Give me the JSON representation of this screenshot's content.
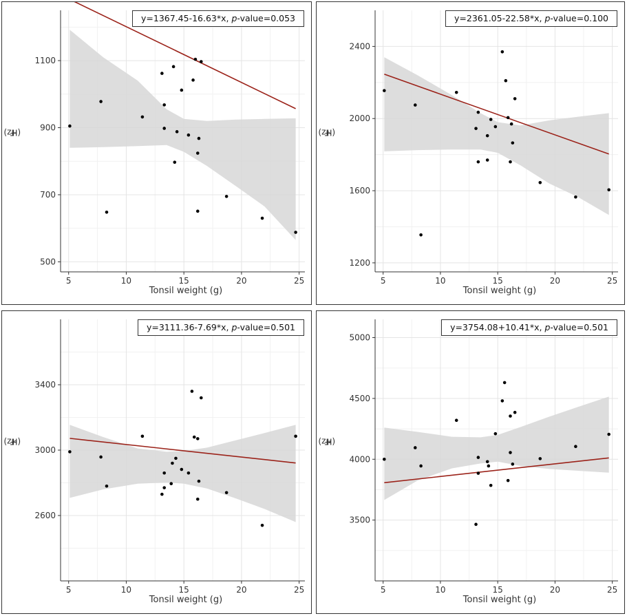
{
  "chart_data": [
    {
      "type": "scatter",
      "equation_prefix": "y=1367.45-16.63*x, ",
      "pvalue_label": "p",
      "pvalue_text": "-value=0.053",
      "xlabel": "Tonsil weight (g)",
      "ylabel_base": "F",
      "ylabel_sub": "1",
      "ylabel_unit": " (Hz)",
      "xlim": [
        4.3,
        25.5
      ],
      "ylim": [
        470,
        1250
      ],
      "xticks": [
        5,
        10,
        15,
        20,
        25
      ],
      "yticks": [
        500,
        700,
        900,
        1100
      ],
      "fit": {
        "intercept": 1367.45,
        "slope": -16.63
      },
      "band": [
        [
          5.1,
          1192,
          840
        ],
        [
          8,
          1110,
          842
        ],
        [
          11,
          1040,
          845
        ],
        [
          13.5,
          955,
          848
        ],
        [
          15,
          926,
          828
        ],
        [
          17,
          920,
          786
        ],
        [
          19.5,
          924,
          726
        ],
        [
          22,
          926,
          665
        ],
        [
          24.7,
          928,
          565
        ]
      ],
      "points": [
        [
          5.1,
          905
        ],
        [
          7.8,
          978
        ],
        [
          8.3,
          648
        ],
        [
          11.4,
          932
        ],
        [
          13.1,
          1062
        ],
        [
          13.3,
          968
        ],
        [
          13.3,
          898
        ],
        [
          14.1,
          1082
        ],
        [
          14.2,
          797
        ],
        [
          14.4,
          888
        ],
        [
          14.8,
          1012
        ],
        [
          15.4,
          878
        ],
        [
          15.8,
          1042
        ],
        [
          16.0,
          1104
        ],
        [
          16.2,
          824
        ],
        [
          16.2,
          651
        ],
        [
          16.3,
          868
        ],
        [
          16.5,
          1097
        ],
        [
          18.7,
          695
        ],
        [
          21.8,
          630
        ],
        [
          24.7,
          588
        ]
      ],
      "colors": {
        "fit": "#9b2219",
        "band": "#d7d7d7",
        "point": "#000000"
      }
    },
    {
      "type": "scatter",
      "equation_prefix": "y=2361.05-22.58*x, ",
      "pvalue_label": "p",
      "pvalue_text": "-value=0.100",
      "xlabel": "Tonsil weight (g)",
      "ylabel_base": "F",
      "ylabel_sub": "2",
      "ylabel_unit": " (Hz)",
      "xlim": [
        4.3,
        25.5
      ],
      "ylim": [
        1150,
        2600
      ],
      "xticks": [
        5,
        10,
        15,
        20,
        25
      ],
      "yticks": [
        1200,
        1600,
        2000,
        2400
      ],
      "fit": {
        "intercept": 2361.05,
        "slope": -22.58
      },
      "band": [
        [
          5.1,
          2340,
          1818
        ],
        [
          8,
          2240,
          1825
        ],
        [
          11,
          2130,
          1828
        ],
        [
          13.5,
          2030,
          1828
        ],
        [
          15,
          1980,
          1810
        ],
        [
          17,
          1962,
          1740
        ],
        [
          19.5,
          1990,
          1640
        ],
        [
          22,
          2010,
          1565
        ],
        [
          24.7,
          2030,
          1465
        ]
      ],
      "points": [
        [
          5.1,
          2155
        ],
        [
          7.8,
          2075
        ],
        [
          8.3,
          1355
        ],
        [
          11.4,
          2145
        ],
        [
          13.1,
          1945
        ],
        [
          13.3,
          2035
        ],
        [
          13.3,
          1760
        ],
        [
          14.1,
          1770
        ],
        [
          14.1,
          1905
        ],
        [
          14.4,
          1995
        ],
        [
          14.8,
          1955
        ],
        [
          15.4,
          2370
        ],
        [
          15.7,
          2210
        ],
        [
          15.9,
          2005
        ],
        [
          16.1,
          1760
        ],
        [
          16.2,
          1970
        ],
        [
          16.3,
          1865
        ],
        [
          16.5,
          2110
        ],
        [
          18.7,
          1645
        ],
        [
          21.8,
          1565
        ],
        [
          24.7,
          1605
        ]
      ],
      "colors": {
        "fit": "#9b2219",
        "band": "#d7d7d7",
        "point": "#000000"
      }
    },
    {
      "type": "scatter",
      "equation_prefix": "y=3111.36-7.69*x, ",
      "pvalue_label": "p",
      "pvalue_text": "-value=0.501",
      "xlabel": "Tonsil weight (g)",
      "ylabel_base": "F",
      "ylabel_sub": "3",
      "ylabel_unit": " (Hz)",
      "xlim": [
        4.3,
        25.5
      ],
      "ylim": [
        2200,
        3800
      ],
      "xticks": [
        5,
        10,
        15,
        20,
        25
      ],
      "yticks": [
        2600,
        3000,
        3400
      ],
      "fit": {
        "intercept": 3111.36,
        "slope": -7.69
      },
      "band": [
        [
          5.1,
          3155,
          2708
        ],
        [
          8,
          3080,
          2760
        ],
        [
          11,
          3010,
          2795
        ],
        [
          13.5,
          2990,
          2802
        ],
        [
          15,
          2995,
          2795
        ],
        [
          17,
          3015,
          2765
        ],
        [
          19.5,
          3060,
          2705
        ],
        [
          22,
          3105,
          2640
        ],
        [
          24.7,
          3155,
          2560
        ]
      ],
      "points": [
        [
          5.1,
          2990
        ],
        [
          7.8,
          2958
        ],
        [
          8.3,
          2780
        ],
        [
          11.4,
          3085
        ],
        [
          13.1,
          2730
        ],
        [
          13.3,
          2770
        ],
        [
          13.3,
          2860
        ],
        [
          13.9,
          2795
        ],
        [
          14.0,
          2920
        ],
        [
          14.3,
          2950
        ],
        [
          14.8,
          2882
        ],
        [
          15.4,
          2860
        ],
        [
          15.7,
          3360
        ],
        [
          15.9,
          3080
        ],
        [
          16.2,
          2700
        ],
        [
          16.2,
          3070
        ],
        [
          16.3,
          2810
        ],
        [
          16.5,
          3320
        ],
        [
          18.7,
          2740
        ],
        [
          21.8,
          2540
        ],
        [
          24.7,
          3085
        ]
      ],
      "colors": {
        "fit": "#9b2219",
        "band": "#d7d7d7",
        "point": "#000000"
      }
    },
    {
      "type": "scatter",
      "equation_prefix": "y=3754.08+10.41*x, ",
      "pvalue_label": "p",
      "pvalue_text": "-value=0.501",
      "xlabel": "Tonsil weight (g)",
      "ylabel_base": "F",
      "ylabel_sub": "4",
      "ylabel_unit": " (Hz)",
      "xlim": [
        4.3,
        25.5
      ],
      "ylim": [
        3000,
        5150
      ],
      "xticks": [
        5,
        10,
        15,
        20,
        25
      ],
      "yticks": [
        3500,
        4000,
        4500,
        5000
      ],
      "fit": {
        "intercept": 3754.08,
        "slope": 10.41
      },
      "band": [
        [
          5.1,
          4260,
          3665
        ],
        [
          8,
          4225,
          3825
        ],
        [
          11,
          4185,
          3925
        ],
        [
          13.5,
          4180,
          3965
        ],
        [
          15,
          4200,
          3980
        ],
        [
          17,
          4265,
          3945
        ],
        [
          19.5,
          4350,
          3920
        ],
        [
          22,
          4430,
          3905
        ],
        [
          24.7,
          4515,
          3890
        ]
      ],
      "points": [
        [
          5.1,
          4000
        ],
        [
          7.8,
          4095
        ],
        [
          8.3,
          3945
        ],
        [
          11.4,
          4320
        ],
        [
          13.1,
          3465
        ],
        [
          13.3,
          3885
        ],
        [
          13.3,
          4015
        ],
        [
          14.1,
          3980
        ],
        [
          14.2,
          3945
        ],
        [
          14.4,
          3785
        ],
        [
          14.8,
          4210
        ],
        [
          15.4,
          4480
        ],
        [
          15.6,
          4630
        ],
        [
          15.9,
          3825
        ],
        [
          16.1,
          4055
        ],
        [
          16.1,
          4355
        ],
        [
          16.3,
          3960
        ],
        [
          16.5,
          4385
        ],
        [
          18.7,
          4005
        ],
        [
          21.8,
          4105
        ],
        [
          24.7,
          4205
        ]
      ],
      "colors": {
        "fit": "#9b2219",
        "band": "#d7d7d7",
        "point": "#000000"
      }
    }
  ]
}
